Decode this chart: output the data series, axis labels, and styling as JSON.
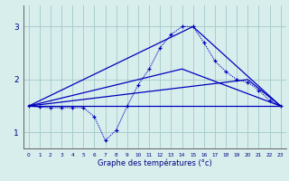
{
  "xlabel": "Graphe des températures (°c)",
  "background_color": "#d8eeed",
  "grid_color": "#a8cece",
  "line_color": "#0000bb",
  "xlim": [
    -0.5,
    23.5
  ],
  "ylim": [
    0.7,
    3.4
  ],
  "xticks": [
    0,
    1,
    2,
    3,
    4,
    5,
    6,
    7,
    8,
    9,
    10,
    11,
    12,
    13,
    14,
    15,
    16,
    17,
    18,
    19,
    20,
    21,
    22,
    23
  ],
  "yticks": [
    1,
    2,
    3
  ],
  "curve": {
    "x": [
      0,
      1,
      2,
      3,
      4,
      5,
      6,
      7,
      8,
      9,
      10,
      11,
      12,
      13,
      14,
      15,
      16,
      17,
      18,
      19,
      20,
      21,
      22,
      23
    ],
    "y": [
      1.5,
      1.48,
      1.47,
      1.47,
      1.47,
      1.47,
      1.3,
      0.85,
      1.05,
      1.5,
      1.9,
      2.2,
      2.6,
      2.85,
      3.0,
      3.0,
      2.7,
      2.35,
      2.15,
      2.0,
      1.95,
      1.8,
      1.6,
      1.5
    ]
  },
  "lines": [
    {
      "x": [
        0,
        23
      ],
      "y": [
        1.5,
        1.5
      ]
    },
    {
      "x": [
        0,
        20,
        23
      ],
      "y": [
        1.5,
        2.0,
        1.5
      ]
    },
    {
      "x": [
        0,
        14,
        23
      ],
      "y": [
        1.5,
        2.2,
        1.5
      ]
    },
    {
      "x": [
        0,
        15,
        23
      ],
      "y": [
        1.5,
        3.0,
        1.5
      ]
    }
  ]
}
